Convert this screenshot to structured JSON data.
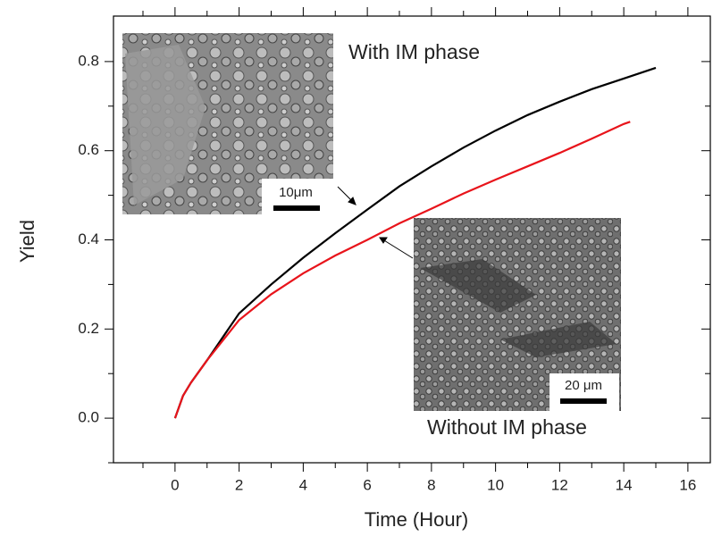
{
  "chart_data": {
    "type": "line",
    "x_label": "Time (Hour)",
    "y_label": "Yield",
    "xlim": [
      -1.92,
      16.7
    ],
    "ylim": [
      -0.1,
      0.902
    ],
    "xticks": [
      0,
      2,
      4,
      6,
      8,
      10,
      12,
      14,
      16
    ],
    "xminorticks": [
      -1,
      1,
      3,
      5,
      7,
      9,
      11,
      13,
      15
    ],
    "yticks": [
      {
        "value": 0,
        "label": "0.0"
      },
      0.2,
      0.4,
      0.6,
      0.8
    ],
    "yminorticks": [
      -0.1,
      0.1,
      0.3,
      0.5,
      0.7
    ],
    "series": [
      {
        "name": "With IM phase",
        "color": "#000000",
        "x": [
          0,
          0.25,
          0.5,
          1,
          2,
          3,
          4,
          5,
          6,
          7,
          8,
          9,
          10,
          11,
          12,
          13,
          14,
          15
        ],
        "values": [
          0,
          0.05,
          0.08,
          0.13,
          0.235,
          0.3,
          0.36,
          0.415,
          0.468,
          0.52,
          0.565,
          0.607,
          0.645,
          0.68,
          0.71,
          0.738,
          0.762,
          0.786
        ]
      },
      {
        "name": "Without IM phase",
        "color": "#e8141b",
        "x": [
          0,
          0.25,
          0.5,
          1,
          2,
          3,
          4,
          5,
          6,
          7,
          8,
          9,
          10,
          11,
          12,
          13,
          14,
          14.2
        ],
        "values": [
          0,
          0.05,
          0.08,
          0.13,
          0.22,
          0.278,
          0.325,
          0.365,
          0.4,
          0.437,
          0.47,
          0.504,
          0.535,
          0.565,
          0.595,
          0.627,
          0.66,
          0.665
        ]
      }
    ],
    "annotations": [
      "10μm",
      "20 μm"
    ]
  }
}
